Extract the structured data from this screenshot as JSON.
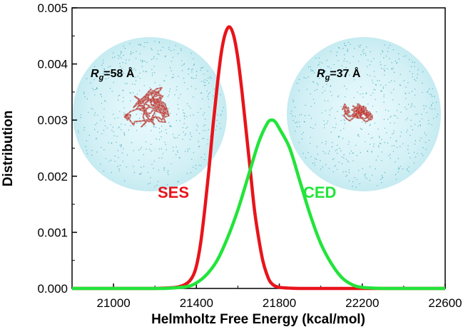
{
  "chart_data": {
    "type": "line",
    "title": "",
    "xlabel": "Helmholtz Free Energy (kcal/mol)",
    "ylabel": "Distribution",
    "xlim": [
      20800,
      22600
    ],
    "ylim": [
      0,
      0.005
    ],
    "xticks": [
      "21000",
      "21400",
      "21800",
      "22200",
      "22600"
    ],
    "yticks": [
      "0.000",
      "0.001",
      "0.002",
      "0.003",
      "0.004",
      "0.005"
    ],
    "grid": false,
    "series": [
      {
        "name": "SES",
        "color": "#e8141b",
        "points": [
          [
            21200,
            0.0
          ],
          [
            21300,
            2e-05
          ],
          [
            21350,
            8e-05
          ],
          [
            21380,
            0.0002
          ],
          [
            21400,
            0.0004
          ],
          [
            21420,
            0.0008
          ],
          [
            21440,
            0.0014
          ],
          [
            21460,
            0.0021
          ],
          [
            21480,
            0.0029
          ],
          [
            21500,
            0.0036
          ],
          [
            21520,
            0.0042
          ],
          [
            21540,
            0.00455
          ],
          [
            21560,
            0.00466
          ],
          [
            21580,
            0.0045
          ],
          [
            21600,
            0.0041
          ],
          [
            21620,
            0.0035
          ],
          [
            21640,
            0.0028
          ],
          [
            21660,
            0.0021
          ],
          [
            21680,
            0.0014
          ],
          [
            21700,
            0.0009
          ],
          [
            21720,
            0.0005
          ],
          [
            21740,
            0.00025
          ],
          [
            21760,
            0.0001
          ],
          [
            21800,
            2e-05
          ],
          [
            21900,
            0.0
          ]
        ]
      },
      {
        "name": "CED",
        "color": "#22e43a",
        "points": [
          [
            21250,
            0.0
          ],
          [
            21350,
            3e-05
          ],
          [
            21400,
            0.0001
          ],
          [
            21450,
            0.00025
          ],
          [
            21500,
            0.0005
          ],
          [
            21550,
            0.0009
          ],
          [
            21600,
            0.0014
          ],
          [
            21650,
            0.002
          ],
          [
            21700,
            0.0026
          ],
          [
            21740,
            0.00293
          ],
          [
            21760,
            0.003
          ],
          [
            21780,
            0.00297
          ],
          [
            21800,
            0.00285
          ],
          [
            21850,
            0.0025
          ],
          [
            21900,
            0.0019
          ],
          [
            21950,
            0.0013
          ],
          [
            22000,
            0.0008
          ],
          [
            22050,
            0.00045
          ],
          [
            22100,
            0.0002
          ],
          [
            22150,
            7e-05
          ],
          [
            22200,
            2e-05
          ],
          [
            22300,
            0.0
          ]
        ]
      }
    ],
    "annotations": [
      {
        "label": "R",
        "subscript": "g",
        "value": "=58 Å"
      },
      {
        "label": "R",
        "subscript": "g",
        "value": "=37 Å"
      }
    ]
  },
  "colors": {
    "sphere_fill": "#d4f1f6",
    "sphere_dots": "#3aa7b3",
    "chain": "#c58a86",
    "chain_red": "#c7302c"
  }
}
